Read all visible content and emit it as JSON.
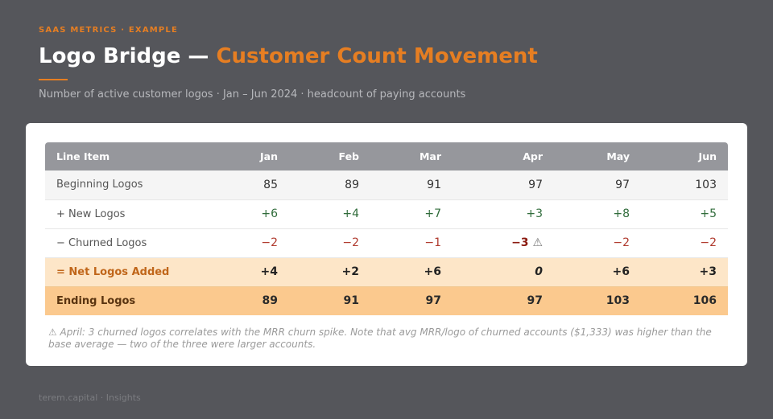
{
  "header": {
    "eyebrow": "SAAS METRICS · EXAMPLE",
    "title_main": "Logo Bridge — ",
    "title_accent": "Customer Count Movement",
    "subtitle": "Number of active customer logos · Jan – Jun 2024 · headcount of paying accounts"
  },
  "colors": {
    "background": "#55565b",
    "accent": "#e67e22",
    "positive": "#2f6b3a",
    "negative": "#b03a2e",
    "net_row": "#fde6c8",
    "ending_row": "#fbc98e"
  },
  "chart_data": {
    "type": "table",
    "title": "Logo Bridge — Customer Count Movement",
    "columns": [
      "Line Item",
      "Jan",
      "Feb",
      "Mar",
      "Apr",
      "May",
      "Jun"
    ],
    "rows": [
      {
        "label": "Beginning Logos",
        "values": [
          "85",
          "89",
          "91",
          "97",
          "97",
          "103"
        ]
      },
      {
        "label": "+ New Logos",
        "values": [
          "+6",
          "+4",
          "+7",
          "+3",
          "+8",
          "+5"
        ]
      },
      {
        "label": "− Churned Logos",
        "values": [
          "−2",
          "−2",
          "−1",
          "−3",
          "−2",
          "−2"
        ],
        "flag": "⚠"
      },
      {
        "label": "= Net Logos Added",
        "values": [
          "+4",
          "+2",
          "+6",
          "0",
          "+6",
          "+3"
        ]
      },
      {
        "label": "Ending Logos",
        "values": [
          "89",
          "91",
          "97",
          "97",
          "103",
          "106"
        ]
      }
    ]
  },
  "note": "⚠ April: 3 churned logos correlates with the MRR churn spike. Note that avg MRR/logo of churned accounts ($1,333) was higher than the base average — two of the three were larger accounts.",
  "footer": "terem.capital · Insights"
}
